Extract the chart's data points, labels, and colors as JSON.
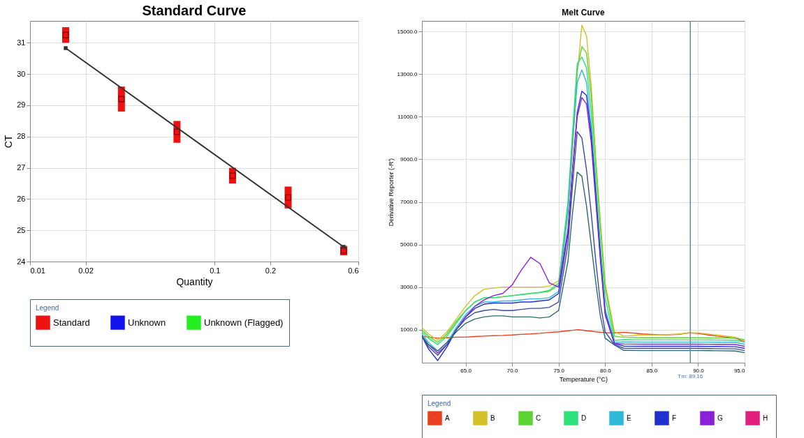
{
  "chart_data": [
    {
      "type": "scatter",
      "title": "Standard Curve",
      "xlabel": "Quantity",
      "ylabel": "CT",
      "legend_title": "Legend",
      "legend": "bottom",
      "log": "x",
      "grid": true,
      "marker": "square",
      "xlim": [
        0.01,
        0.6
      ],
      "xticks": [
        0.01,
        0.02,
        0.1,
        0.2,
        0.6
      ],
      "ylim": [
        24,
        31.7
      ],
      "yticks": [
        24,
        25,
        26,
        27,
        28,
        29,
        30,
        31
      ],
      "series": [
        {
          "name": "Standard",
          "color": "#ee1111",
          "x": [
            0.0156,
            0.03125,
            0.0625,
            0.125,
            0.25,
            0.5
          ],
          "values": [
            31.25,
            29.2,
            28.15,
            26.75,
            26.05,
            24.35
          ],
          "errors": [
            [
              31.0,
              31.5
            ],
            [
              28.8,
              29.6
            ],
            [
              27.8,
              28.5
            ],
            [
              26.5,
              27.0
            ],
            [
              25.7,
              26.4
            ],
            [
              24.2,
              24.5
            ]
          ]
        },
        {
          "name": "Unknown",
          "color": "#1111ee"
        },
        {
          "name": "Unknown (Flagged)",
          "color": "#22ee22"
        },
        {
          "type": "line",
          "color": "#333333",
          "x": [
            0.0156,
            0.5
          ],
          "values": [
            30.83,
            24.47
          ]
        }
      ]
    },
    {
      "type": "line",
      "title": "Melt Curve",
      "xlabel": "Temperature (°C)",
      "ylabel": "Derivative Reporter (-R')",
      "legend_title": "Legend",
      "legend": "bottom",
      "grid": true,
      "marker": "none",
      "xlim": [
        60.3,
        95
      ],
      "xticks": [
        {
          "value": 65,
          "label": "65.0"
        },
        {
          "value": 70,
          "label": "70.0"
        },
        {
          "value": 75,
          "label": "75.0"
        },
        {
          "value": 80,
          "label": "80.0"
        },
        {
          "value": 85,
          "label": "85.0"
        },
        {
          "value": 90,
          "label": "90.0"
        },
        {
          "value": 95,
          "label": "95.0"
        }
      ],
      "ylim": [
        -550,
        15500
      ],
      "yticks": [
        {
          "value": 1000,
          "label": "1000.0"
        },
        {
          "value": 3000,
          "label": "3000.0"
        },
        {
          "value": 5000,
          "label": "5000.0"
        },
        {
          "value": 7000,
          "label": "7000.0"
        },
        {
          "value": 9000,
          "label": "9000.0"
        },
        {
          "value": 11000,
          "label": "11000.0"
        },
        {
          "value": 13000,
          "label": "13000.0"
        },
        {
          "value": 15000,
          "label": "15000.0"
        }
      ],
      "ref_lines": [
        {
          "axis": "x",
          "value": 89.16,
          "label": "Tm: 89.16",
          "color": "#6a88aa"
        }
      ],
      "x": [
        60.3,
        61,
        62,
        63,
        64,
        65,
        66,
        67,
        68,
        69,
        70,
        71,
        72,
        73,
        74,
        75,
        76,
        76.5,
        77,
        77.5,
        78,
        78.5,
        79,
        79.5,
        80,
        81,
        82,
        84,
        86,
        88,
        89,
        90,
        92,
        94,
        95
      ],
      "series": [
        {
          "name": "A",
          "color": "#e8401c",
          "values": [
            700,
            650,
            600,
            620,
            650,
            650,
            680,
            700,
            720,
            730,
            750,
            780,
            800,
            830,
            870,
            900,
            950,
            970,
            1000,
            980,
            950,
            930,
            900,
            880,
            860,
            850,
            880,
            800,
            750,
            780,
            850,
            820,
            700,
            600,
            420
          ]
        },
        {
          "name": "B",
          "color": "#d4c02a",
          "values": [
            1100,
            800,
            500,
            900,
            1500,
            2100,
            2600,
            2900,
            2950,
            3000,
            3000,
            3000,
            3000,
            3000,
            3050,
            3300,
            6500,
            9500,
            13000,
            15300,
            14800,
            12500,
            9000,
            6000,
            3200,
            900,
            700,
            750,
            750,
            800,
            850,
            850,
            750,
            650,
            480
          ]
        },
        {
          "name": "C",
          "color": "#5fd234",
          "values": [
            1000,
            700,
            400,
            800,
            1400,
            1900,
            2300,
            2500,
            2500,
            2550,
            2600,
            2650,
            2700,
            2750,
            2800,
            3100,
            6800,
            10000,
            13200,
            14300,
            14000,
            12000,
            8800,
            5800,
            3000,
            700,
            640,
            620,
            620,
            620,
            620,
            620,
            610,
            600,
            520
          ]
        },
        {
          "name": "D",
          "color": "#2ee07a",
          "values": [
            900,
            600,
            300,
            700,
            1300,
            1900,
            2300,
            2500,
            2500,
            2550,
            2600,
            2650,
            2700,
            2750,
            2850,
            3200,
            7000,
            10300,
            13500,
            13800,
            13300,
            11200,
            8000,
            5000,
            2500,
            500,
            530,
            520,
            520,
            520,
            520,
            520,
            510,
            500,
            420
          ]
        },
        {
          "name": "E",
          "color": "#30b8d8",
          "values": [
            800,
            400,
            0,
            400,
            1100,
            1700,
            2100,
            2300,
            2300,
            2350,
            2350,
            2400,
            2450,
            2450,
            2500,
            2800,
            6500,
            9800,
            12600,
            13200,
            12600,
            10500,
            7500,
            4500,
            2000,
            400,
            430,
            420,
            420,
            420,
            420,
            420,
            410,
            400,
            320
          ]
        },
        {
          "name": "F",
          "color": "#2030d0",
          "values": [
            700,
            100,
            -450,
            200,
            1000,
            1600,
            2000,
            2200,
            2250,
            2250,
            2250,
            2300,
            2300,
            2350,
            2400,
            2700,
            5500,
            8500,
            11200,
            12200,
            12000,
            10200,
            7300,
            4400,
            1800,
            350,
            230,
            220,
            220,
            220,
            220,
            220,
            210,
            200,
            120
          ]
        },
        {
          "name": "G",
          "color": "#8a20d8",
          "values": [
            700,
            300,
            -100,
            300,
            1000,
            1600,
            2100,
            2400,
            2600,
            2700,
            3100,
            3800,
            4400,
            4100,
            3200,
            3000,
            5700,
            8500,
            11000,
            11900,
            11600,
            9800,
            7000,
            4200,
            1700,
            350,
            330,
            320,
            320,
            320,
            320,
            320,
            310,
            300,
            220
          ]
        },
        {
          "name": "H",
          "color": "#e0207a",
          "values": [
            null,
            null,
            null,
            null,
            null,
            null,
            null,
            null,
            null,
            null,
            null,
            null,
            null,
            null,
            null,
            null,
            null,
            null,
            null,
            null,
            null,
            null,
            null,
            null,
            null,
            null,
            null,
            null,
            null,
            null,
            null,
            null,
            null,
            null,
            null
          ]
        },
        {
          "color": "#3a4aa0",
          "values": [
            700,
            200,
            -200,
            300,
            1000,
            1500,
            1800,
            1900,
            1950,
            1900,
            1900,
            1950,
            2000,
            2000,
            2050,
            2300,
            5000,
            7800,
            10300,
            10000,
            8500,
            6500,
            4200,
            2200,
            900,
            300,
            130,
            120,
            120,
            120,
            120,
            120,
            110,
            100,
            20
          ]
        },
        {
          "color": "#2a6a70",
          "values": [
            700,
            300,
            0,
            400,
            900,
            1300,
            1500,
            1600,
            1650,
            1650,
            1600,
            1600,
            1600,
            1550,
            1600,
            1900,
            4200,
            6500,
            8400,
            8200,
            6800,
            5000,
            3200,
            1600,
            600,
            280,
            30,
            20,
            20,
            20,
            20,
            20,
            10,
            0,
            -80
          ]
        }
      ]
    }
  ]
}
